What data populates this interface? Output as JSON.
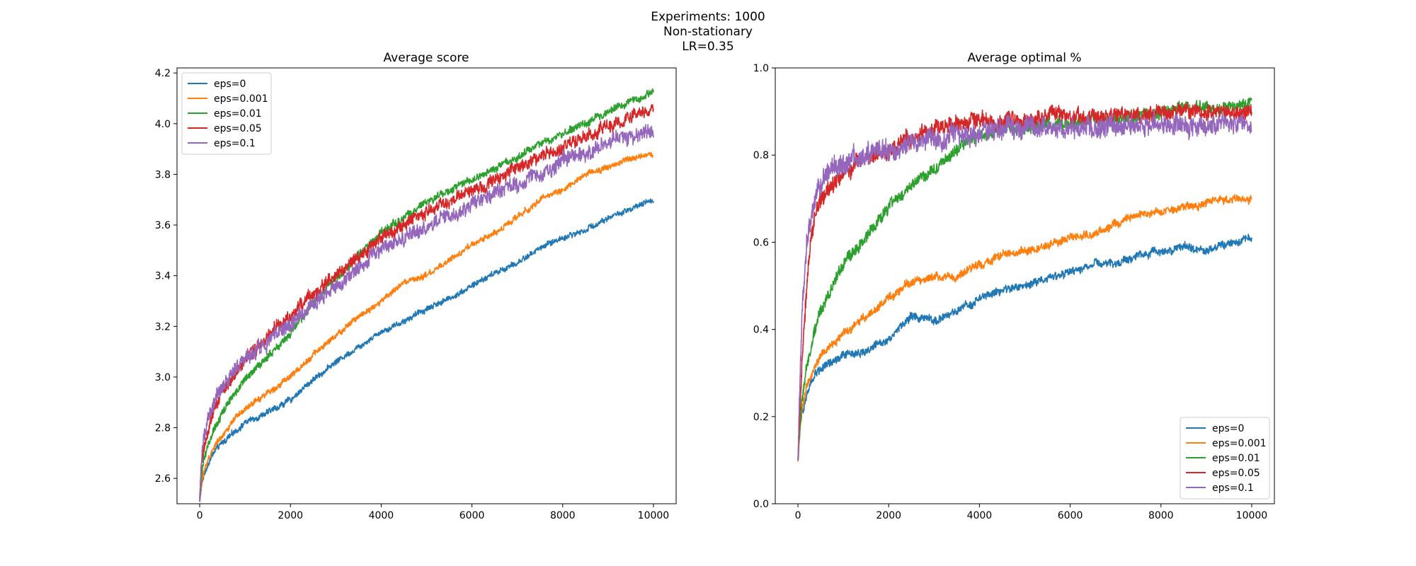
{
  "figure": {
    "title_lines": [
      "Experiments: 1000",
      "Non-stationary",
      "LR=0.35"
    ]
  },
  "colors": {
    "eps=0": "#1f77b4",
    "eps=0.001": "#ff7f0e",
    "eps=0.01": "#2ca02c",
    "eps=0.05": "#d62728",
    "eps=0.1": "#9467bd"
  },
  "chart_data": [
    {
      "type": "line",
      "title": "Average score",
      "xlabel": "",
      "ylabel": "",
      "xlim": [
        -500,
        10500
      ],
      "ylim": [
        2.5,
        4.22
      ],
      "x_ticks": [
        0,
        2000,
        4000,
        6000,
        8000,
        10000
      ],
      "y_ticks": [
        2.6,
        2.8,
        3.0,
        3.2,
        3.4,
        3.6,
        3.8,
        4.0,
        4.2
      ],
      "y_tick_labels": [
        "2.6",
        "2.8",
        "3.0",
        "3.2",
        "3.4",
        "3.6",
        "3.8",
        "4.0",
        "4.2"
      ],
      "grid": false,
      "legend_position": "upper-left",
      "x": [
        0,
        50,
        100,
        200,
        300,
        500,
        750,
        1000,
        1500,
        2000,
        2500,
        3000,
        3500,
        4000,
        4500,
        5000,
        5500,
        6000,
        6500,
        7000,
        7500,
        8000,
        8500,
        9000,
        9500,
        10000
      ],
      "series": [
        {
          "name": "eps=0",
          "noise": 0.01,
          "values": [
            2.51,
            2.58,
            2.62,
            2.66,
            2.7,
            2.74,
            2.78,
            2.82,
            2.86,
            2.91,
            2.99,
            3.06,
            3.12,
            3.18,
            3.22,
            3.27,
            3.31,
            3.36,
            3.41,
            3.45,
            3.51,
            3.55,
            3.58,
            3.63,
            3.66,
            3.7
          ]
        },
        {
          "name": "eps=0.001",
          "noise": 0.01,
          "values": [
            2.51,
            2.59,
            2.63,
            2.68,
            2.72,
            2.77,
            2.83,
            2.87,
            2.94,
            3.0,
            3.09,
            3.16,
            3.24,
            3.3,
            3.37,
            3.4,
            3.46,
            3.52,
            3.57,
            3.63,
            3.7,
            3.74,
            3.8,
            3.83,
            3.86,
            3.88
          ]
        },
        {
          "name": "eps=0.01",
          "noise": 0.013,
          "values": [
            2.51,
            2.63,
            2.68,
            2.74,
            2.79,
            2.86,
            2.93,
            2.99,
            3.08,
            3.17,
            3.29,
            3.39,
            3.48,
            3.57,
            3.63,
            3.69,
            3.73,
            3.78,
            3.82,
            3.87,
            3.92,
            3.96,
            4.0,
            4.05,
            4.09,
            4.12
          ]
        },
        {
          "name": "eps=0.05",
          "noise": 0.022,
          "values": [
            2.51,
            2.67,
            2.73,
            2.81,
            2.87,
            2.94,
            3.01,
            3.07,
            3.16,
            3.24,
            3.33,
            3.4,
            3.47,
            3.55,
            3.6,
            3.65,
            3.69,
            3.74,
            3.78,
            3.82,
            3.87,
            3.91,
            3.95,
            3.98,
            4.02,
            4.06
          ]
        },
        {
          "name": "eps=0.1",
          "noise": 0.026,
          "values": [
            2.51,
            2.7,
            2.77,
            2.84,
            2.89,
            2.96,
            3.02,
            3.07,
            3.14,
            3.21,
            3.29,
            3.36,
            3.43,
            3.5,
            3.55,
            3.59,
            3.64,
            3.68,
            3.73,
            3.76,
            3.8,
            3.84,
            3.88,
            3.92,
            3.95,
            3.98
          ]
        }
      ]
    },
    {
      "type": "line",
      "title": "Average optimal %",
      "xlabel": "",
      "ylabel": "",
      "xlim": [
        -500,
        10500
      ],
      "ylim": [
        0.0,
        1.0
      ],
      "x_ticks": [
        0,
        2000,
        4000,
        6000,
        8000,
        10000
      ],
      "y_ticks": [
        0.0,
        0.2,
        0.4,
        0.6,
        0.8,
        1.0
      ],
      "y_tick_labels": [
        "0.0",
        "0.2",
        "0.4",
        "0.6",
        "0.8",
        "1.0"
      ],
      "grid": false,
      "legend_position": "lower-right",
      "x": [
        0,
        50,
        100,
        200,
        300,
        400,
        500,
        700,
        1000,
        1500,
        2000,
        2500,
        3000,
        3500,
        4000,
        4500,
        5000,
        5500,
        6000,
        6500,
        7000,
        7500,
        8000,
        8500,
        9000,
        9500,
        10000
      ],
      "series": [
        {
          "name": "eps=0",
          "noise": 0.008,
          "values": [
            0.1,
            0.18,
            0.21,
            0.25,
            0.28,
            0.3,
            0.31,
            0.32,
            0.34,
            0.35,
            0.38,
            0.43,
            0.42,
            0.44,
            0.47,
            0.49,
            0.5,
            0.52,
            0.53,
            0.55,
            0.55,
            0.57,
            0.58,
            0.59,
            0.58,
            0.6,
            0.61
          ]
        },
        {
          "name": "eps=0.001",
          "noise": 0.008,
          "values": [
            0.1,
            0.18,
            0.22,
            0.27,
            0.3,
            0.32,
            0.34,
            0.36,
            0.39,
            0.43,
            0.47,
            0.51,
            0.52,
            0.52,
            0.55,
            0.57,
            0.58,
            0.59,
            0.61,
            0.62,
            0.64,
            0.66,
            0.67,
            0.68,
            0.69,
            0.7,
            0.7
          ]
        },
        {
          "name": "eps=0.01",
          "noise": 0.012,
          "values": [
            0.1,
            0.19,
            0.25,
            0.32,
            0.37,
            0.41,
            0.44,
            0.49,
            0.55,
            0.61,
            0.68,
            0.73,
            0.77,
            0.81,
            0.85,
            0.86,
            0.86,
            0.87,
            0.87,
            0.88,
            0.88,
            0.89,
            0.9,
            0.91,
            0.91,
            0.91,
            0.92
          ]
        },
        {
          "name": "eps=0.05",
          "noise": 0.016,
          "values": [
            0.1,
            0.22,
            0.35,
            0.52,
            0.62,
            0.67,
            0.69,
            0.72,
            0.76,
            0.79,
            0.81,
            0.84,
            0.86,
            0.87,
            0.88,
            0.88,
            0.88,
            0.89,
            0.89,
            0.89,
            0.89,
            0.89,
            0.9,
            0.9,
            0.9,
            0.9,
            0.9
          ]
        },
        {
          "name": "eps=0.1",
          "noise": 0.02,
          "values": [
            0.1,
            0.3,
            0.45,
            0.6,
            0.66,
            0.7,
            0.73,
            0.76,
            0.78,
            0.8,
            0.81,
            0.83,
            0.84,
            0.84,
            0.85,
            0.86,
            0.86,
            0.86,
            0.86,
            0.86,
            0.87,
            0.87,
            0.87,
            0.87,
            0.87,
            0.87,
            0.87
          ]
        }
      ]
    }
  ]
}
